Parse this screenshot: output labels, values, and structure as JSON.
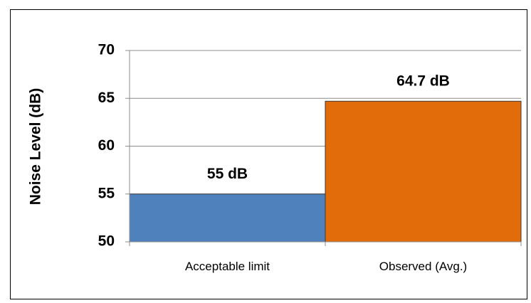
{
  "chart_data": {
    "type": "bar",
    "categories": [
      "Acceptable limit",
      "Observed (Avg.)"
    ],
    "values": [
      55,
      64.7
    ],
    "data_labels": [
      "55 dB",
      "64.7 dB"
    ],
    "colors": [
      "#4F81BD",
      "#E36C0A"
    ],
    "ylabel": "Noise Level  (dB)",
    "ylim": [
      50,
      70
    ],
    "yticks": [
      50,
      55,
      60,
      65,
      70
    ],
    "grid": true
  }
}
